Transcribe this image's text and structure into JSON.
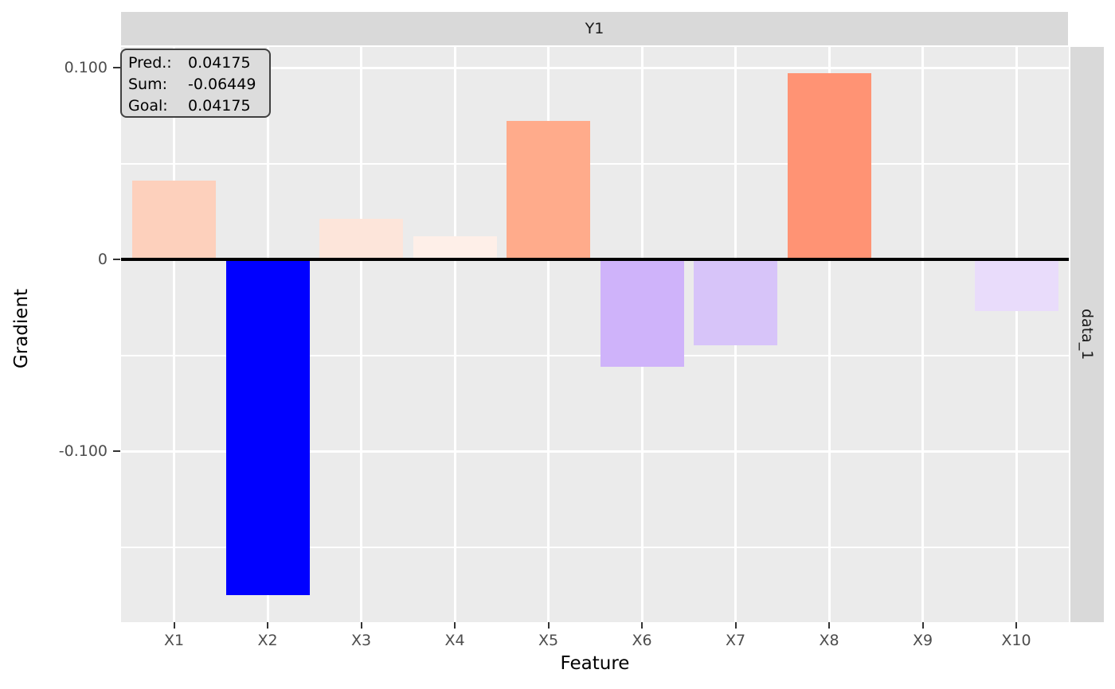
{
  "figure": {
    "facet_col_label": "Y1",
    "facet_row_label": "data_1",
    "x_axis_title": "Feature",
    "y_axis_title": "Gradient"
  },
  "tooltip": {
    "rows": [
      {
        "label": "Pred.:",
        "value": "0.04175"
      },
      {
        "label": "Sum:",
        "value": "-0.06449"
      },
      {
        "label": "Goal:",
        "value": "0.04175"
      }
    ]
  },
  "chart_data": {
    "type": "bar",
    "title": "",
    "xlabel": "Feature",
    "ylabel": "Gradient",
    "facet_top": "Y1",
    "facet_right": "data_1",
    "categories": [
      "X1",
      "X2",
      "X3",
      "X4",
      "X5",
      "X6",
      "X7",
      "X8",
      "X9",
      "X10"
    ],
    "values": [
      0.041,
      -0.175,
      0.021,
      0.012,
      0.072,
      -0.056,
      -0.045,
      0.097,
      0.0,
      -0.027
    ],
    "bar_colors": [
      "#FDD0BC",
      "#0000FF",
      "#FDE5DA",
      "#FEEFE8",
      "#FFAB8B",
      "#CFB3FA",
      "#D7C4F9",
      "#FF9374",
      "#FFFFFF",
      "#E9DCFB"
    ],
    "y_ticks": [
      {
        "label": "0.100",
        "value": 0.1
      },
      {
        "label": "0",
        "value": 0.0
      },
      {
        "label": "-0.100",
        "value": -0.1
      }
    ],
    "y_minor_ticks": [
      0.05,
      -0.05,
      -0.15
    ],
    "ylim": [
      -0.189,
      0.111
    ],
    "grid": true,
    "legend_position": "none",
    "zero_line": true,
    "annotations": [
      "Pred.: 0.04175",
      "Sum: -0.06449",
      "Goal: 0.04175"
    ],
    "theme_colors": {
      "panel_background": "#EBEBEB",
      "strip_background": "#D9D9D9",
      "gridline": "#FFFFFF",
      "axis_text": "#4D4D4D",
      "tick_mark": "#333333",
      "zero_line": "#000000",
      "tooltip_background": "#DCDCDC",
      "tooltip_border": "#404040",
      "negative_extreme": "#0000FF",
      "positive_strong": "#FF9374"
    }
  }
}
